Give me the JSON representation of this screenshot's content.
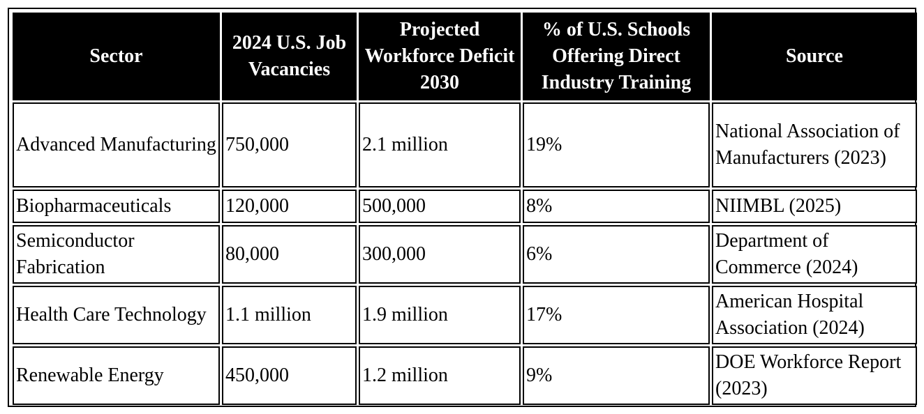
{
  "table": {
    "headers": [
      "Sector",
      "2024 U.S. Job Vacancies",
      "Projected Workforce Deficit 2030",
      "% of U.S. Schools Offering Direct Industry Training",
      "Source"
    ],
    "rows": [
      [
        "Advanced Manufacturing",
        "750,000",
        "2.1 million",
        "19%",
        "National Association of Manufacturers (2023)"
      ],
      [
        "Biopharmaceuticals",
        "120,000",
        "500,000",
        "8%",
        "NIIMBL (2025)"
      ],
      [
        "Semiconductor Fabrication",
        "80,000",
        "300,000",
        "6%",
        "Department of Commerce (2024)"
      ],
      [
        "Health Care Technology",
        "1.1 million",
        "1.9 million",
        "17%",
        "American Hospital Association (2024)"
      ],
      [
        "Renewable Energy",
        "450,000",
        "1.2 million",
        "9%",
        "DOE Workforce Report (2023)"
      ]
    ]
  },
  "colors": {
    "header_background": "#000000",
    "header_text": "#ffffff",
    "border": "#000000",
    "cell_background": "#ffffff"
  }
}
